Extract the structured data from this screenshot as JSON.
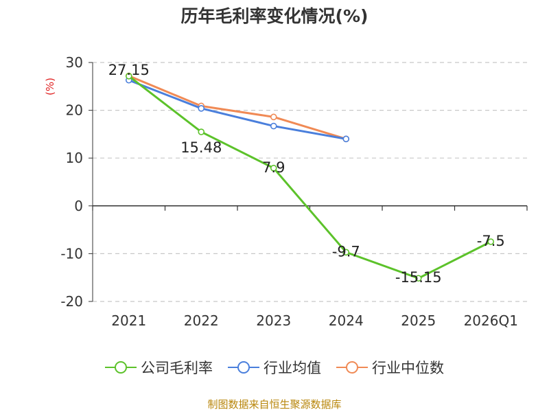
{
  "chart_data": {
    "type": "line",
    "title": "历年毛利率变化情况(%)",
    "ylabel": "(%)",
    "xlabel": "",
    "categories": [
      "2021",
      "2022",
      "2023",
      "2024",
      "2025",
      "2026Q1"
    ],
    "ylim": [
      -20,
      30
    ],
    "yticks": [
      30,
      20,
      10,
      0,
      -10,
      -20
    ],
    "grid": true,
    "legend_position": "bottom",
    "series": [
      {
        "name": "公司毛利率",
        "color": "#5cc22a",
        "values": [
          27.15,
          15.48,
          7.9,
          -9.7,
          -15.15,
          -7.5
        ],
        "labels": [
          "27.15",
          "15.48",
          "7.9",
          "-9.7",
          "-15.15",
          "-7.5"
        ]
      },
      {
        "name": "行业均值",
        "color": "#4a7fdc",
        "values": [
          26.3,
          20.4,
          16.7,
          14.0,
          null,
          null
        ]
      },
      {
        "name": "行业中位数",
        "color": "#f08a55",
        "values": [
          27.2,
          20.9,
          18.6,
          14.0,
          null,
          null
        ]
      }
    ]
  },
  "footer": {
    "source": "制图数据来自恒生聚源数据库"
  }
}
